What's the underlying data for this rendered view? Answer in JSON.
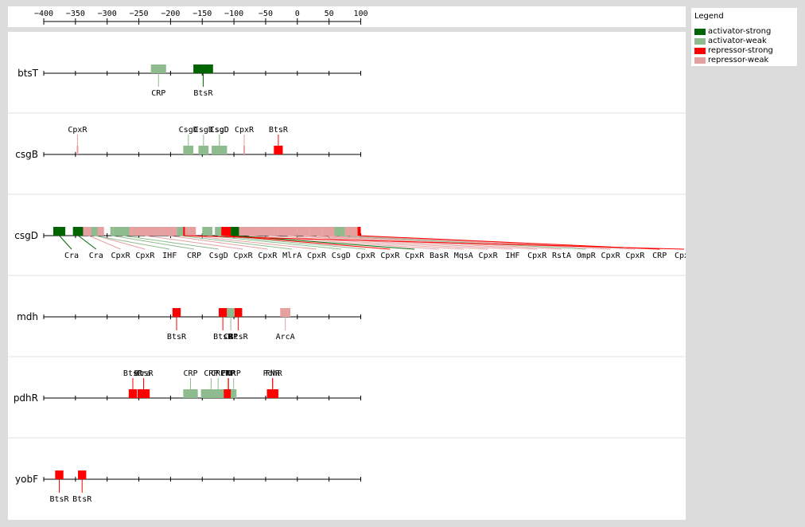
{
  "axis": {
    "ticks": [
      -400,
      -350,
      -300,
      -250,
      -200,
      -150,
      -100,
      -50,
      0,
      50,
      100
    ]
  },
  "legend": {
    "title": "Legend",
    "items": [
      {
        "key": "activator-strong",
        "label": "activator-strong",
        "color": "#006400"
      },
      {
        "key": "activator-weak",
        "label": "activator-weak",
        "color": "#8fbc8f"
      },
      {
        "key": "repressor-strong",
        "label": "repressor-strong",
        "color": "#ff0000"
      },
      {
        "key": "repressor-weak",
        "label": "repressor-weak",
        "color": "#e6a0a0"
      }
    ]
  },
  "tracks": [
    {
      "gene": "btsT",
      "sites": [
        {
          "tf": "CRP",
          "start": -231,
          "end": -207,
          "type": "activator-weak"
        },
        {
          "tf": "BtsR",
          "start": -164,
          "end": -133,
          "type": "activator-strong"
        }
      ]
    },
    {
      "gene": "csgB",
      "sites": [
        {
          "tf": "CpxR",
          "start": -348,
          "end": -346,
          "type": "repressor-weak"
        },
        {
          "tf": "CsgD",
          "start": -180,
          "end": -164,
          "type": "activator-weak"
        },
        {
          "tf": "CsgD",
          "start": -156,
          "end": -140,
          "type": "activator-weak"
        },
        {
          "tf": "CsgD",
          "start": -135,
          "end": -111,
          "type": "activator-weak"
        },
        {
          "tf": "CsgD",
          "start": -135,
          "end": -111,
          "type": "activator-weak"
        },
        {
          "tf": "CpxR",
          "start": -85,
          "end": -83,
          "type": "repressor-weak"
        },
        {
          "tf": "BtsR",
          "start": -37,
          "end": -23,
          "type": "repressor-strong"
        }
      ]
    },
    {
      "gene": "csgD",
      "sites": [
        {
          "tf": "Cra",
          "start": -385,
          "end": -366,
          "type": "activator-strong"
        },
        {
          "tf": "Cra",
          "start": -354,
          "end": -337,
          "type": "activator-strong"
        },
        {
          "tf": "CpxR",
          "start": -338,
          "end": -320,
          "type": "repressor-weak"
        },
        {
          "tf": "CpxR",
          "start": -330,
          "end": -305,
          "type": "repressor-weak"
        },
        {
          "tf": "IHF",
          "start": -325,
          "end": -315,
          "type": "activator-weak"
        },
        {
          "tf": "CRP",
          "start": -295,
          "end": -290,
          "type": "activator-weak"
        },
        {
          "tf": "CsgD",
          "start": -290,
          "end": -260,
          "type": "activator-weak"
        },
        {
          "tf": "CpxR",
          "start": -265,
          "end": -215,
          "type": "repressor-weak"
        },
        {
          "tf": "CpxR",
          "start": -215,
          "end": -190,
          "type": "repressor-weak"
        },
        {
          "tf": "MlrA",
          "start": -190,
          "end": -180,
          "type": "activator-weak"
        },
        {
          "tf": "CpxR",
          "start": -180,
          "end": -160,
          "type": "repressor-weak"
        },
        {
          "tf": "CsgD",
          "start": -150,
          "end": -134,
          "type": "activator-weak"
        },
        {
          "tf": "CpxR",
          "start": -130,
          "end": -120,
          "type": "activator-weak"
        },
        {
          "tf": "CpxR",
          "start": -120,
          "end": -105,
          "type": "repressor-strong"
        },
        {
          "tf": "CpxR",
          "start": -105,
          "end": -92,
          "type": "activator-strong"
        },
        {
          "tf": "BasR",
          "start": -92,
          "end": -60,
          "type": "repressor-weak"
        },
        {
          "tf": "MqsA",
          "start": -60,
          "end": -30,
          "type": "repressor-weak"
        },
        {
          "tf": "CpxR",
          "start": -30,
          "end": 0,
          "type": "repressor-weak"
        },
        {
          "tf": "IHF",
          "start": 0,
          "end": 20,
          "type": "repressor-weak"
        },
        {
          "tf": "CpxR",
          "start": 20,
          "end": 40,
          "type": "repressor-weak"
        },
        {
          "tf": "RstA",
          "start": 40,
          "end": 58,
          "type": "repressor-weak"
        },
        {
          "tf": "OmpR",
          "start": 58,
          "end": 75,
          "type": "activator-weak"
        },
        {
          "tf": "CpxR",
          "start": 75,
          "end": 92,
          "type": "repressor-weak"
        },
        {
          "tf": "CpxR",
          "start": 85,
          "end": 100,
          "type": "repressor-weak"
        },
        {
          "tf": "CRP",
          "start": 95,
          "end": 100,
          "type": "repressor-strong"
        },
        {
          "tf": "CpxR",
          "start": -180,
          "end": -178,
          "type": "repressor-strong"
        }
      ]
    },
    {
      "gene": "mdh",
      "sites": [
        {
          "tf": "BtsR",
          "start": -197,
          "end": -184,
          "type": "repressor-strong"
        },
        {
          "tf": "BtsR",
          "start": -124,
          "end": -111,
          "type": "repressor-strong"
        },
        {
          "tf": "CRP",
          "start": -111,
          "end": -99,
          "type": "activator-weak"
        },
        {
          "tf": "BtsR",
          "start": -99,
          "end": -87,
          "type": "repressor-strong"
        },
        {
          "tf": "ArcA",
          "start": -27,
          "end": -11,
          "type": "repressor-weak"
        }
      ]
    },
    {
      "gene": "pdhR",
      "sites": [
        {
          "tf": "BtsR",
          "start": -266,
          "end": -253,
          "type": "repressor-strong"
        },
        {
          "tf": "BtsR",
          "start": -252,
          "end": -233,
          "type": "repressor-strong"
        },
        {
          "tf": "Cra",
          "start": -252,
          "end": -233,
          "type": "repressor-strong"
        },
        {
          "tf": "CRP",
          "start": -180,
          "end": -157,
          "type": "activator-weak"
        },
        {
          "tf": "CRP",
          "start": -152,
          "end": -120,
          "type": "activator-weak"
        },
        {
          "tf": "CRP",
          "start": -135,
          "end": -115,
          "type": "activator-weak"
        },
        {
          "tf": "CRP",
          "start": -120,
          "end": -100,
          "type": "activator-weak"
        },
        {
          "tf": "FNR",
          "start": -116,
          "end": -101,
          "type": "repressor-strong"
        },
        {
          "tf": "CRP",
          "start": -105,
          "end": -96,
          "type": "activator-weak"
        },
        {
          "tf": "FNR",
          "start": -48,
          "end": -30,
          "type": "repressor-strong"
        },
        {
          "tf": "PdhR",
          "start": -48,
          "end": -30,
          "type": "repressor-strong"
        }
      ]
    },
    {
      "gene": "yobF",
      "sites": [
        {
          "tf": "BtsR",
          "start": -382,
          "end": -369,
          "type": "repressor-strong"
        },
        {
          "tf": "BtsR",
          "start": -346,
          "end": -333,
          "type": "repressor-strong"
        }
      ]
    }
  ]
}
